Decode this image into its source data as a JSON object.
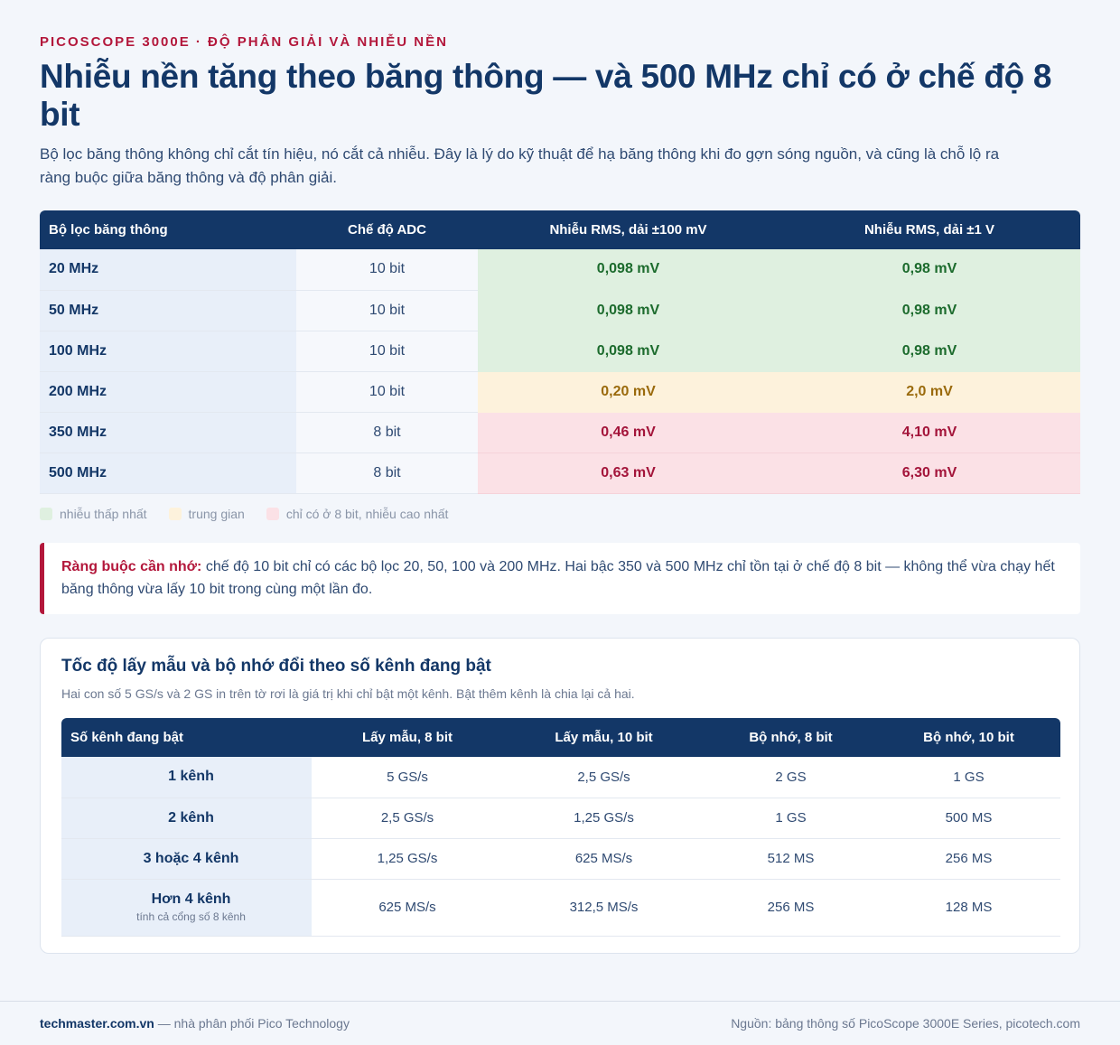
{
  "header": {
    "eyebrow": "PICOSCOPE 3000E · ĐỘ PHÂN GIẢI VÀ NHIỄU NỀN",
    "title": "Nhiễu nền tăng theo băng thông — và 500 MHz chỉ có ở chế độ 8 bit",
    "subtitle": "Bộ lọc băng thông không chỉ cắt tín hiệu, nó cắt cả nhiễu. Đây là lý do kỹ thuật để hạ băng thông khi đo gợn sóng nguồn, và cũng là chỗ lộ ra ràng buộc giữa băng thông và độ phân giải."
  },
  "noise_table": {
    "headers": [
      "Bộ lọc băng thông",
      "Chế độ ADC",
      "Nhiễu RMS, dải ±100 mV",
      "Nhiễu RMS, dải ±1 V"
    ],
    "rows": [
      {
        "bandwidth": "20 MHz",
        "mode": "10 bit",
        "noise_100mv": "0,098 mV",
        "noise_1v": "0,98 mV",
        "level": "low"
      },
      {
        "bandwidth": "50 MHz",
        "mode": "10 bit",
        "noise_100mv": "0,098 mV",
        "noise_1v": "0,98 mV",
        "level": "low"
      },
      {
        "bandwidth": "100 MHz",
        "mode": "10 bit",
        "noise_100mv": "0,098 mV",
        "noise_1v": "0,98 mV",
        "level": "low"
      },
      {
        "bandwidth": "200 MHz",
        "mode": "10 bit",
        "noise_100mv": "0,20 mV",
        "noise_1v": "2,0 mV",
        "level": "mid"
      },
      {
        "bandwidth": "350 MHz",
        "mode": "8 bit",
        "noise_100mv": "0,46 mV",
        "noise_1v": "4,10 mV",
        "level": "high"
      },
      {
        "bandwidth": "500 MHz",
        "mode": "8 bit",
        "noise_100mv": "0,63 mV",
        "noise_1v": "6,30 mV",
        "level": "high"
      }
    ]
  },
  "legend": {
    "low": "nhiễu thấp nhất",
    "mid": "trung gian",
    "high": "chỉ có ở 8 bit, nhiễu cao nhất"
  },
  "note": {
    "lead": "Ràng buộc cần nhớ:",
    "text": " chế độ 10 bit chỉ có các bộ lọc 20, 50, 100 và 200 MHz. Hai bậc 350 và 500 MHz chỉ tồn tại ở chế độ 8 bit — không thể vừa chạy hết băng thông vừa lấy 10 bit trong cùng một lần đo."
  },
  "sampling_card": {
    "title": "Tốc độ lấy mẫu và bộ nhớ đổi theo số kênh đang bật",
    "subtitle": "Hai con số 5 GS/s và 2 GS in trên tờ rơi là giá trị khi chỉ bật một kênh. Bật thêm kênh là chia lại cả hai.",
    "headers": [
      "Số kênh đang bật",
      "Lấy mẫu, 8 bit",
      "Lấy mẫu, 10 bit",
      "Bộ nhớ, 8 bit",
      "Bộ nhớ, 10 bit"
    ],
    "rows": [
      {
        "channels": "1 kênh",
        "note": "",
        "s8": "5 GS/s",
        "s10": "2,5 GS/s",
        "m8": "2 GS",
        "m10": "1 GS"
      },
      {
        "channels": "2 kênh",
        "note": "",
        "s8": "2,5 GS/s",
        "s10": "1,25 GS/s",
        "m8": "1 GS",
        "m10": "500 MS"
      },
      {
        "channels": "3 hoặc 4 kênh",
        "note": "",
        "s8": "1,25 GS/s",
        "s10": "625 MS/s",
        "m8": "512 MS",
        "m10": "256 MS"
      },
      {
        "channels": "Hơn 4 kênh",
        "note": "tính cả cổng số 8 kênh",
        "s8": "625 MS/s",
        "s10": "312,5 MS/s",
        "m8": "256 MS",
        "m10": "128 MS"
      }
    ]
  },
  "footer": {
    "brand": "techmaster.com.vn",
    "tagline": " — nhà phân phối Pico Technology",
    "source": "Nguồn: bảng thông số PicoScope 3000E Series, picotech.com"
  },
  "colors": {
    "accent": "#b3173b",
    "navy": "#133767",
    "low_bg": "#dff0e0",
    "mid_bg": "#fdf2dc",
    "high_bg": "#fbe1e6"
  }
}
